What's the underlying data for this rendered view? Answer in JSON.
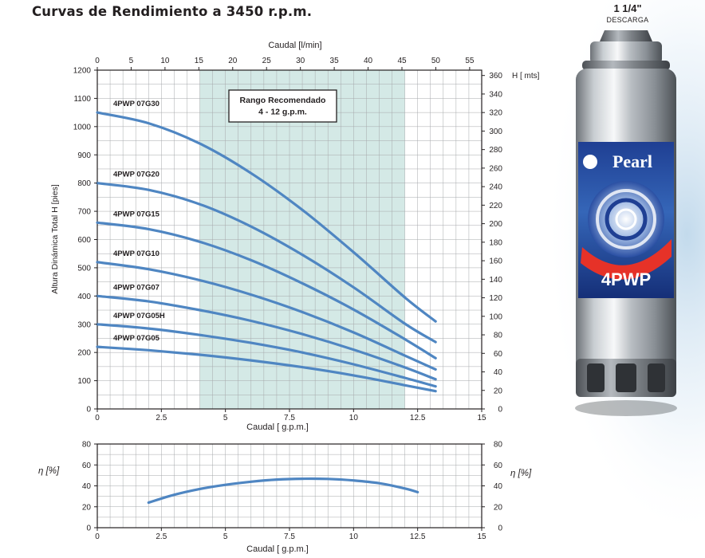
{
  "header": {
    "title": "Curvas de Rendimiento a 3450 r.p.m.",
    "discharge_size": "1 1/4\"",
    "discharge_label": "DESCARGA"
  },
  "colors": {
    "curve": "#4f86c2",
    "recommended_band": "#d4e9e6",
    "grid": "#a6a8ab",
    "frame": "#231f20"
  },
  "recommended_range": {
    "title": "Rango Recomendado",
    "range_label": "4 - 12 g.p.m.",
    "gpm_min": 4,
    "gpm_max": 12
  },
  "pump": {
    "brand": "Pearl",
    "model": "4PWP"
  },
  "chart_data": [
    {
      "type": "line",
      "xlabel": "Caudal [ g.p.m.]",
      "x2label": "Caudal [l/min]",
      "ylabel": "Altura Dinámica Total H [pies]",
      "y2label": "H [ mts]",
      "xlim": [
        0,
        15
      ],
      "ylim": [
        0,
        1200
      ],
      "x2lim": [
        0,
        56.78
      ],
      "y2lim": [
        0,
        365.76
      ],
      "x_ticks": [
        0,
        2.5,
        5,
        7.5,
        10,
        12.5,
        15
      ],
      "x_tick_labels": [
        "0",
        "2.5",
        "5",
        "7.5",
        "10",
        "12.5",
        "15"
      ],
      "y_ticks": [
        0,
        100,
        200,
        300,
        400,
        500,
        600,
        700,
        800,
        900,
        1000,
        1100,
        1200
      ],
      "x2_ticks": [
        0,
        5,
        10,
        15,
        20,
        25,
        30,
        35,
        40,
        45,
        50,
        55
      ],
      "y2_ticks": [
        0,
        20,
        40,
        60,
        80,
        100,
        120,
        140,
        160,
        180,
        200,
        220,
        240,
        260,
        280,
        300,
        320,
        340,
        360
      ],
      "grid": true,
      "series": [
        {
          "name": "4PWP 07G30",
          "x": [
            0,
            2,
            4,
            6,
            8,
            10,
            12,
            13.2
          ],
          "y": [
            1050,
            1012,
            940,
            835,
            705,
            555,
            395,
            310
          ]
        },
        {
          "name": "4PWP 07G20",
          "x": [
            0,
            2,
            4,
            6,
            8,
            10,
            12,
            13.2
          ],
          "y": [
            800,
            776,
            725,
            646,
            546,
            431,
            302,
            237
          ]
        },
        {
          "name": "4PWP 07G15",
          "x": [
            0,
            2,
            4,
            6,
            8,
            10,
            12,
            13.2
          ],
          "y": [
            660,
            637,
            592,
            527,
            445,
            352,
            247,
            180
          ]
        },
        {
          "name": "4PWP 07G10",
          "x": [
            0,
            2,
            4,
            6,
            8,
            10,
            12,
            13.2
          ],
          "y": [
            520,
            495,
            456,
            405,
            343,
            271,
            189,
            140
          ]
        },
        {
          "name": "4PWP 07G07",
          "x": [
            0,
            2,
            4,
            6,
            8,
            10,
            12,
            13.2
          ],
          "y": [
            400,
            381,
            350,
            312,
            265,
            210,
            147,
            105
          ]
        },
        {
          "name": "4PWP 07G05H",
          "x": [
            0,
            2,
            4,
            6,
            8,
            10,
            12,
            13.2
          ],
          "y": [
            300,
            285,
            262,
            234,
            200,
            158,
            110,
            80
          ]
        },
        {
          "name": "4PWP 07G05",
          "x": [
            0,
            2,
            4,
            6,
            8,
            10,
            12,
            13.2
          ],
          "y": [
            220,
            208,
            192,
            172,
            148,
            119,
            84,
            63
          ]
        }
      ]
    },
    {
      "type": "line",
      "xlabel": "Caudal [ g.p.m.]",
      "ylabel": "η [%]",
      "y2label": "η [%]",
      "xlim": [
        0,
        15
      ],
      "ylim": [
        0,
        80
      ],
      "x_ticks": [
        0,
        2.5,
        5,
        7.5,
        10,
        12.5,
        15
      ],
      "x_tick_labels": [
        "0",
        "2.5",
        "5",
        "7.5",
        "10",
        "12.5",
        "15"
      ],
      "y_ticks": [
        0,
        20,
        40,
        60,
        80
      ],
      "grid": true,
      "series": [
        {
          "x": [
            2,
            3,
            4,
            5,
            6,
            7,
            8,
            9,
            10,
            11,
            12,
            12.5
          ],
          "y": [
            24,
            31.5,
            37,
            41,
            44,
            46,
            46.8,
            46.6,
            45.2,
            42.5,
            37.5,
            34
          ]
        }
      ]
    }
  ]
}
